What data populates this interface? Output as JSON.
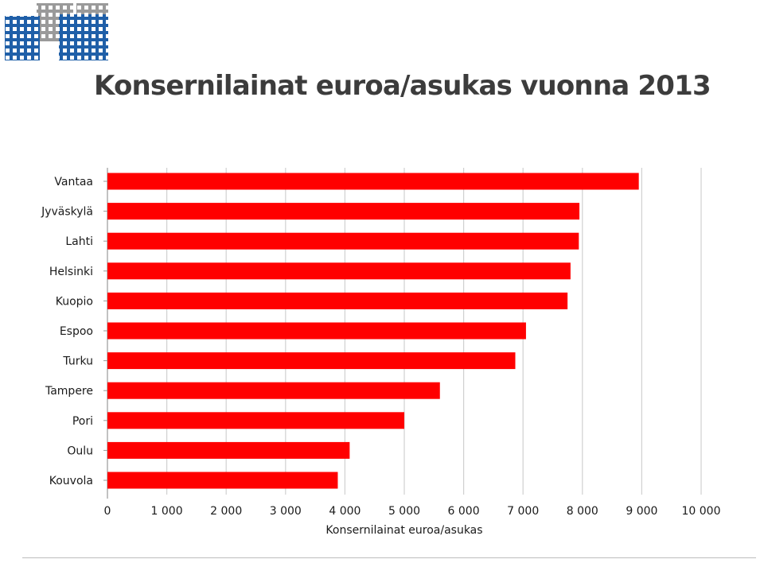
{
  "slide": {
    "title": "Konsernilainat euroa/asukas vuonna 2013"
  },
  "logo": {
    "colors": {
      "blue": "#1f5fa8",
      "grey": "#9a9a9a"
    }
  },
  "chart_data": {
    "type": "bar",
    "orientation": "horizontal",
    "categories": [
      "Vantaa",
      "Jyväskylä",
      "Lahti",
      "Helsinki",
      "Kuopio",
      "Espoo",
      "Turku",
      "Tampere",
      "Pori",
      "Oulu",
      "Kouvola"
    ],
    "values": [
      8950,
      7950,
      7940,
      7800,
      7750,
      7050,
      6870,
      5600,
      5000,
      4080,
      3880
    ],
    "xlabel": "Konsernilainat euroa/asukas",
    "ylabel": "",
    "xlim": [
      0,
      10000
    ],
    "xticks": [
      0,
      1000,
      2000,
      3000,
      4000,
      5000,
      6000,
      7000,
      8000,
      9000,
      10000
    ],
    "xtick_labels": [
      "0",
      "1 000",
      "2 000",
      "3 000",
      "4 000",
      "5 000",
      "6 000",
      "7 000",
      "8 000",
      "9 000",
      "10 000"
    ],
    "grid": true,
    "legend": "none",
    "bar_color": "#ff0000",
    "grid_color": "#d0d0d0"
  }
}
